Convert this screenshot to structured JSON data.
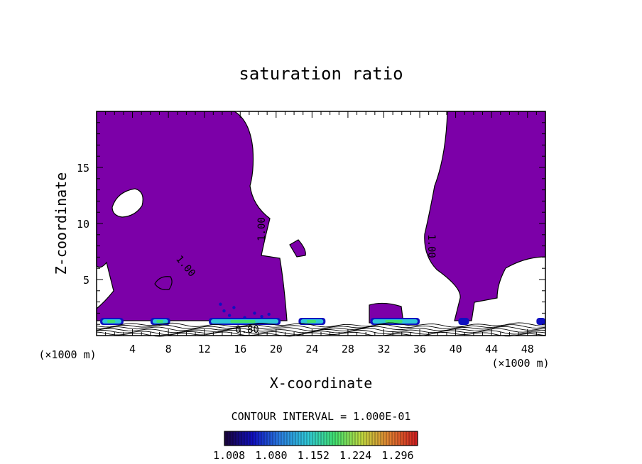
{
  "chart_data": {
    "type": "heatmap",
    "title": "saturation ratio",
    "xlabel": "X-coordinate",
    "ylabel": "Z-coordinate",
    "x_unit": "(×1000 m)",
    "y_unit": "(×1000 m)",
    "xlim": [
      0,
      50
    ],
    "ylim": [
      0,
      20
    ],
    "x_ticks": [
      "4",
      "8",
      "12",
      "16",
      "20",
      "24",
      "28",
      "32",
      "36",
      "40",
      "44",
      "48"
    ],
    "y_ticks": [
      "5",
      "10",
      "15"
    ],
    "contour_interval_text": "CONTOUR INTERVAL = 1.000E-01",
    "contour_labels": [
      "1.00",
      "1.00",
      "1.00",
      "0.80"
    ],
    "colorbar_ticks": [
      "1.008",
      "1.080",
      "1.152",
      "1.224",
      "1.296"
    ],
    "colorbar_range": [
      1.0,
      1.33
    ],
    "fill_color": "#7c00a8",
    "colors": [
      "#1a0540",
      "#1010c0",
      "#2a7ee0",
      "#30c8d8",
      "#40e070",
      "#c0d840",
      "#e08030",
      "#d02020"
    ],
    "grid": false,
    "legend": "none"
  }
}
